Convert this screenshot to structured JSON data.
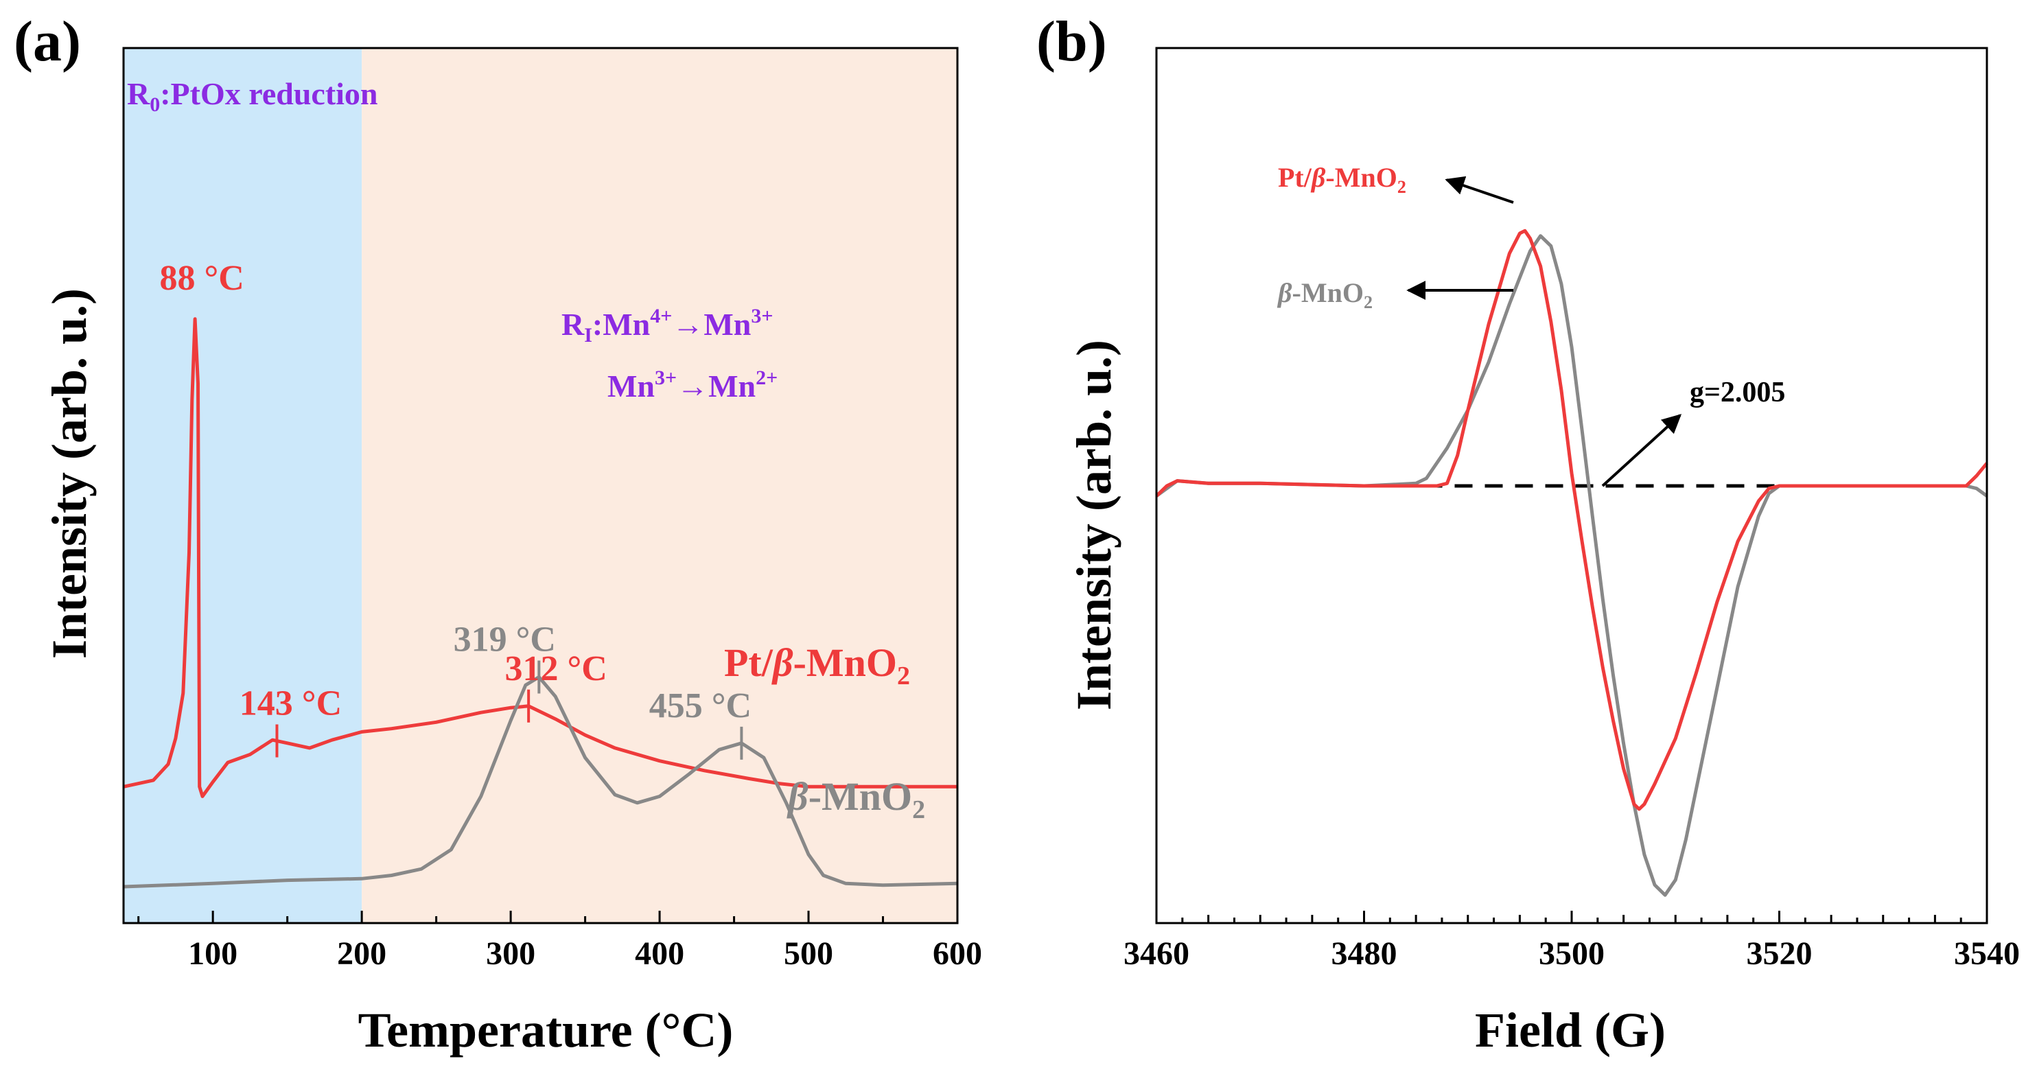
{
  "chart_data": [
    {
      "panel": "(a)",
      "type": "line",
      "xlabel": "Temperature (°C)",
      "ylabel": "Intensity (arb. u.)",
      "xlim": [
        40,
        600
      ],
      "x_ticks": [
        100,
        200,
        300,
        400,
        500,
        600
      ],
      "y_ticks": "none",
      "regions": [
        {
          "x_range": [
            40,
            200
          ],
          "color": "#cce8fa",
          "label_main": "R",
          "label_sub": "0",
          "label_rest": ":PtOx reduction"
        },
        {
          "x_range": [
            200,
            600
          ],
          "color": "#fcebe0"
        }
      ],
      "reaction_label": {
        "line1": {
          "main": "R",
          "sub": "I",
          "text1": ":Mn",
          "sup1": "4+",
          "arrow": "→",
          "text2": "Mn",
          "sup2": "3+"
        },
        "line2": {
          "text1": "Mn",
          "sup1": "3+",
          "arrow": "→",
          "text2": "Mn",
          "sup2": "2+"
        },
        "color": "#8b2be2"
      },
      "series": [
        {
          "name_prefix": "Pt/",
          "name_beta": "β",
          "name_mid": "-MnO",
          "name_sub": "2",
          "color": "#ee3b3b",
          "offset": 0.62,
          "x": [
            40,
            60,
            70,
            75,
            80,
            84,
            86,
            88,
            90,
            91,
            93,
            100,
            110,
            125,
            140,
            150,
            165,
            180,
            200,
            220,
            250,
            280,
            300,
            312,
            330,
            350,
            370,
            400,
            430,
            460,
            480,
            500,
            550,
            600
          ],
          "values": [
            0.0,
            0.04,
            0.14,
            0.3,
            0.58,
            1.45,
            2.4,
            2.9,
            2.5,
            0.0,
            -0.06,
            0.03,
            0.15,
            0.2,
            0.29,
            0.27,
            0.24,
            0.29,
            0.34,
            0.36,
            0.4,
            0.46,
            0.49,
            0.5,
            0.42,
            0.32,
            0.24,
            0.16,
            0.1,
            0.05,
            0.02,
            0.0,
            0.0,
            0.0
          ]
        },
        {
          "name_prefix": "",
          "name_beta": "β",
          "name_mid": "-MnO",
          "name_sub": "2",
          "color": "#888888",
          "offset": 0.0,
          "x": [
            40,
            100,
            150,
            200,
            220,
            240,
            260,
            280,
            300,
            310,
            319,
            330,
            350,
            370,
            385,
            400,
            420,
            440,
            455,
            470,
            485,
            500,
            510,
            525,
            550,
            600
          ],
          "values": [
            0.0,
            0.02,
            0.04,
            0.05,
            0.07,
            0.11,
            0.23,
            0.56,
            1.03,
            1.25,
            1.3,
            1.18,
            0.8,
            0.57,
            0.52,
            0.56,
            0.7,
            0.85,
            0.89,
            0.8,
            0.52,
            0.2,
            0.07,
            0.02,
            0.01,
            0.02
          ]
        }
      ],
      "annotations": [
        {
          "text": "88 °C",
          "x": 88,
          "series": 0,
          "color": "#ee3b3b",
          "tick": false
        },
        {
          "text": "143 °C",
          "x": 143,
          "series": 0,
          "color": "#ee3b3b",
          "tick": true
        },
        {
          "text": "312 °C",
          "x": 312,
          "series": 0,
          "color": "#ee3b3b",
          "tick": true
        },
        {
          "text": "319 °C",
          "x": 319,
          "series": 1,
          "color": "#888888",
          "tick": true
        },
        {
          "text": "455 °C",
          "x": 455,
          "series": 1,
          "color": "#888888",
          "tick": true
        }
      ]
    },
    {
      "panel": "(b)",
      "type": "line",
      "xlabel": "Field (G)",
      "ylabel": "Intensity (arb. u.)",
      "xlim": [
        3460,
        3540
      ],
      "x_ticks": [
        3460,
        3480,
        3500,
        3520,
        3540
      ],
      "y_ticks": "none",
      "baseline": {
        "x_range": [
          3480,
          3527
        ],
        "y": 0,
        "style": "dashed",
        "color": "#000000"
      },
      "series": [
        {
          "name_prefix": "Pt/",
          "name_beta": "β",
          "name_mid": "-MnO",
          "name_sub": "2",
          "color": "#ee3b3b",
          "x": [
            3460,
            3461,
            3462,
            3465,
            3470,
            3480,
            3487,
            3488,
            3489,
            3490,
            3492,
            3494,
            3495,
            3495.5,
            3496,
            3497,
            3498,
            3499,
            3500,
            3501,
            3502,
            3503,
            3504,
            3505,
            3506,
            3506.5,
            3507,
            3508,
            3510,
            3512,
            3514,
            3516,
            3518,
            3519,
            3520,
            3525,
            3530,
            3535,
            3538,
            3539,
            3540
          ],
          "values": [
            -0.04,
            0.0,
            0.02,
            0.01,
            0.01,
            0.0,
            0.0,
            0.01,
            0.12,
            0.3,
            0.64,
            0.92,
            1.0,
            1.01,
            0.98,
            0.87,
            0.65,
            0.38,
            0.05,
            -0.22,
            -0.48,
            -0.72,
            -0.93,
            -1.12,
            -1.26,
            -1.28,
            -1.26,
            -1.18,
            -1.0,
            -0.74,
            -0.46,
            -0.22,
            -0.06,
            -0.01,
            0.0,
            0.0,
            0.0,
            0.0,
            0.0,
            0.04,
            0.09
          ]
        },
        {
          "name_prefix": "",
          "name_beta": "β",
          "name_mid": "-MnO",
          "name_sub": "2",
          "color": "#888888",
          "x": [
            3460,
            3461,
            3462,
            3465,
            3470,
            3480,
            3485,
            3486,
            3487,
            3488,
            3490,
            3492,
            3494,
            3496,
            3497,
            3498,
            3499,
            3500,
            3501,
            3502,
            3503,
            3504,
            3505,
            3506,
            3507,
            3508,
            3509,
            3510,
            3511,
            3512,
            3514,
            3516,
            3518,
            3519,
            3520,
            3525,
            3530,
            3535,
            3538,
            3539,
            3540
          ],
          "values": [
            -0.04,
            -0.01,
            0.02,
            0.01,
            0.01,
            0.0,
            0.01,
            0.03,
            0.09,
            0.15,
            0.3,
            0.49,
            0.72,
            0.93,
            0.99,
            0.95,
            0.8,
            0.55,
            0.22,
            -0.12,
            -0.45,
            -0.75,
            -1.02,
            -1.26,
            -1.46,
            -1.58,
            -1.62,
            -1.56,
            -1.4,
            -1.2,
            -0.8,
            -0.4,
            -0.12,
            -0.03,
            0.0,
            0.0,
            0.0,
            0.0,
            0.0,
            -0.01,
            -0.04
          ]
        }
      ],
      "annotations": [
        {
          "text": "g=2.005",
          "x": 3502.5,
          "y": 0
        }
      ]
    }
  ]
}
